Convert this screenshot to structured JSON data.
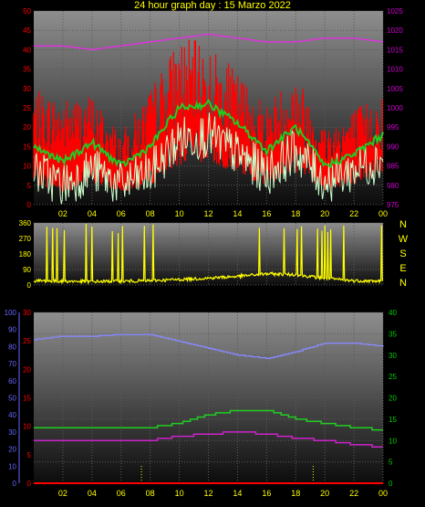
{
  "page": {
    "title": "24 hour graph day : 15 Marzo 2022",
    "compass": [
      "N",
      "W",
      "S",
      "E",
      "N"
    ]
  },
  "colors": {
    "background": "#000000",
    "wind_gust": "#ff0000",
    "wind_avg": "#22cc22",
    "wind_min": "#ccffcc",
    "pressure": "#dd33dd",
    "direction": "#ffff00",
    "humidity": "#8888ff",
    "temperature": "#22cc22",
    "dewpoint": "#cc22cc",
    "rain": "#ff0000",
    "left_axis": "#ff0000",
    "right_axis_top": "#cc00cc",
    "right_axis_bottom": "#00cc00",
    "humidity_axis": "#6666ff",
    "time_axis": "#ffff00"
  },
  "chart_data": [
    {
      "type": "line",
      "name": "wind-and-pressure",
      "x_ticks": [
        "02",
        "04",
        "06",
        "08",
        "10",
        "12",
        "14",
        "16",
        "18",
        "20",
        "22",
        "00"
      ],
      "y_left": {
        "ticks": [
          0,
          5,
          10,
          15,
          20,
          25,
          30,
          35,
          40,
          45,
          50
        ],
        "range": [
          0,
          50
        ]
      },
      "y_right": {
        "ticks": [
          975,
          980,
          985,
          990,
          995,
          1000,
          1005,
          1010,
          1015,
          1020,
          1025
        ],
        "range": [
          975,
          1025
        ]
      },
      "hours": [
        0,
        2,
        4,
        6,
        8,
        10,
        12,
        14,
        16,
        18,
        20,
        22,
        24
      ],
      "gust_envelope": [
        26,
        24,
        25,
        16,
        26,
        38,
        36,
        30,
        23,
        30,
        18,
        22,
        25
      ],
      "avg_wind": [
        15,
        11,
        16,
        10,
        15,
        25,
        26,
        21,
        14,
        20,
        10,
        13,
        18
      ],
      "min_wind": [
        9,
        5,
        9,
        5,
        8,
        17,
        18,
        13,
        8,
        14,
        6,
        9,
        12
      ],
      "pressure": [
        1016,
        1016,
        1015,
        1016,
        1017,
        1018,
        1019,
        1018,
        1017,
        1017,
        1018,
        1018,
        1017
      ]
    },
    {
      "type": "line",
      "name": "wind-direction",
      "x_ticks": [
        "02",
        "04",
        "06",
        "08",
        "10",
        "12",
        "14",
        "16",
        "18",
        "20",
        "22",
        "00"
      ],
      "y_left": {
        "ticks": [
          0,
          90,
          180,
          270,
          360
        ],
        "range": [
          0,
          360
        ]
      },
      "hours": [
        0,
        2,
        4,
        6,
        8,
        10,
        12,
        14,
        16,
        18,
        20,
        22,
        24
      ],
      "direction": [
        25,
        22,
        20,
        22,
        25,
        32,
        40,
        50,
        65,
        60,
        38,
        25,
        22
      ]
    },
    {
      "type": "line",
      "name": "temperature-humidity-rain",
      "x_ticks": [
        "02",
        "04",
        "06",
        "08",
        "10",
        "12",
        "14",
        "16",
        "18",
        "20",
        "22",
        "00"
      ],
      "y_humidity": {
        "ticks": [
          0,
          10,
          20,
          30,
          40,
          50,
          60,
          70,
          80,
          90,
          100
        ],
        "range": [
          0,
          100
        ]
      },
      "y_left": {
        "ticks": [
          0,
          5,
          10,
          15,
          20,
          25,
          30
        ],
        "range": [
          0,
          30
        ]
      },
      "y_right": {
        "ticks": [
          0,
          5,
          10,
          15,
          20,
          25,
          30,
          35,
          40
        ],
        "range": [
          0,
          40
        ]
      },
      "hours": [
        0,
        2,
        4,
        6,
        8,
        10,
        12,
        14,
        16,
        18,
        20,
        22,
        24
      ],
      "humidity": [
        84,
        86,
        86,
        87,
        87,
        83,
        79,
        75,
        73,
        77,
        82,
        82,
        80
      ],
      "temperature": [
        13,
        13,
        13,
        13,
        13,
        14,
        16,
        17,
        17,
        15,
        14,
        13,
        12.5
      ],
      "dewpoint": [
        10,
        10,
        10,
        10,
        10,
        11,
        11.5,
        12,
        11.5,
        10.5,
        10,
        9,
        8.5
      ],
      "rain": [
        0,
        0,
        0,
        0,
        0,
        0,
        0,
        0,
        0,
        0,
        0,
        0,
        0
      ]
    }
  ]
}
